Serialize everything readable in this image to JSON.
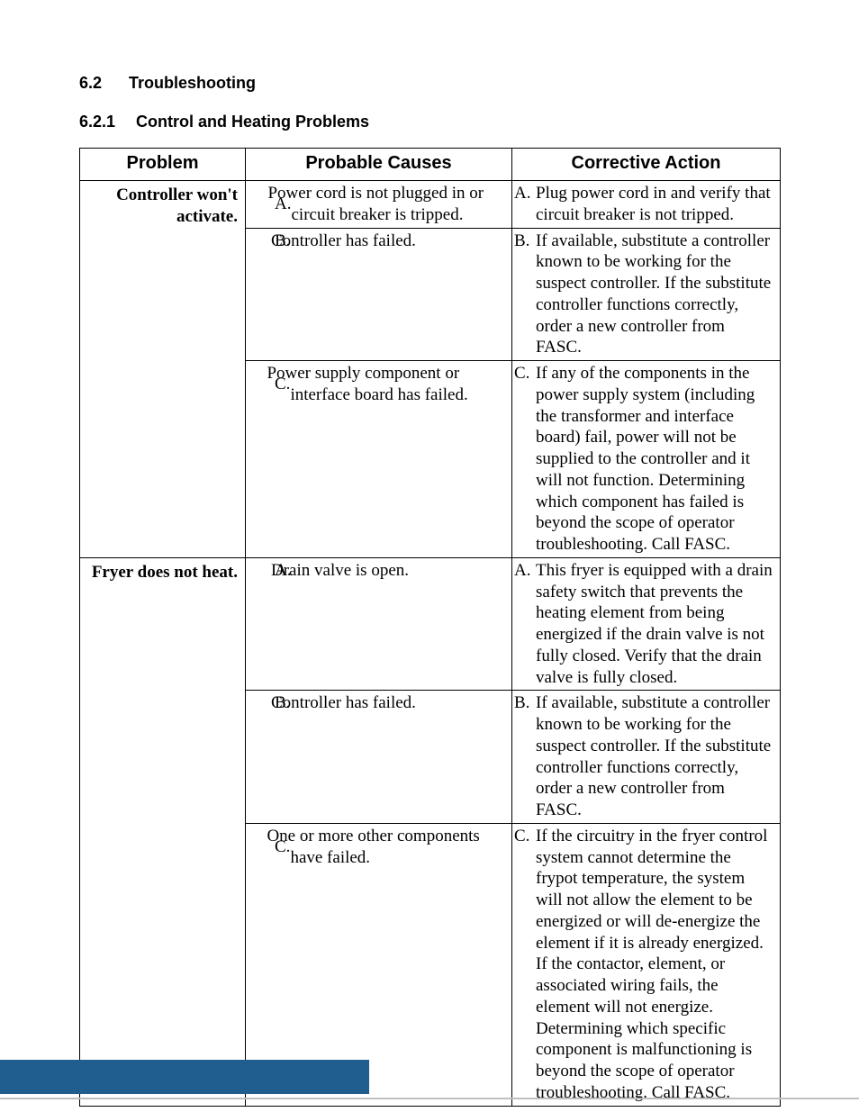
{
  "section": {
    "number": "6.2",
    "title": "Troubleshooting"
  },
  "subsection": {
    "number": "6.2.1",
    "title": "Control and Heating Problems"
  },
  "table": {
    "headers": {
      "problem": "Problem",
      "cause": "Probable Causes",
      "action": "Corrective Action"
    },
    "groups": [
      {
        "problem": "Controller won't activate.",
        "rows": [
          {
            "cause_letter": "A.",
            "cause": "Power cord is not plugged in or circuit breaker is tripped.",
            "action_letter": "A.",
            "action": "Plug power cord in and verify that circuit breaker is not tripped."
          },
          {
            "cause_letter": "B.",
            "cause": "Controller has failed.",
            "action_letter": "B.",
            "action": "If available, substitute a controller known to be working for the suspect controller.  If the substitute controller functions correctly, order a new controller from FASC."
          },
          {
            "cause_letter": "C.",
            "cause": "Power supply component or interface board has failed.",
            "action_letter": "C.",
            "action": "If any of the components in the power supply system (including the transformer and interface board) fail, power will not be supplied to the controller and it will not function.  Determining which component has failed is beyond the scope of operator troubleshooting.  Call FASC."
          }
        ]
      },
      {
        "problem": "Fryer does not heat.",
        "rows": [
          {
            "cause_letter": "A.",
            "cause": "Drain valve is open.",
            "action_letter": "A.",
            "action": "This fryer is equipped with a drain safety switch that prevents the heating element from being energized if the drain valve is not fully closed.  Verify that the drain valve is fully closed."
          },
          {
            "cause_letter": "B.",
            "cause": "Controller has failed.",
            "action_letter": "B.",
            "action": "If available, substitute a controller known to be working for the suspect controller.  If the substitute controller functions correctly, order a new controller from FASC."
          },
          {
            "cause_letter": "C.",
            "cause": "One or more other components have failed.",
            "action_letter": "C.",
            "action": "If the circuitry in the fryer control system cannot determine the frypot temperature, the system will not allow the element to be energized or will de-energize the element if it is already energized.  If the contactor, element, or associated wiring fails, the element will not energize.  Determining which specific component is malfunctioning is beyond the scope of operator troubleshooting.  Call FASC."
          }
        ]
      }
    ]
  },
  "colors": {
    "text": "#000000",
    "border": "#000000",
    "footer_band": "#205e8f",
    "footer_line": "#bfbfbf",
    "background": "#ffffff"
  },
  "fonts": {
    "heading_family": "Arial",
    "body_family": "Times New Roman",
    "heading_size_pt": 13,
    "body_size_pt": 14
  }
}
